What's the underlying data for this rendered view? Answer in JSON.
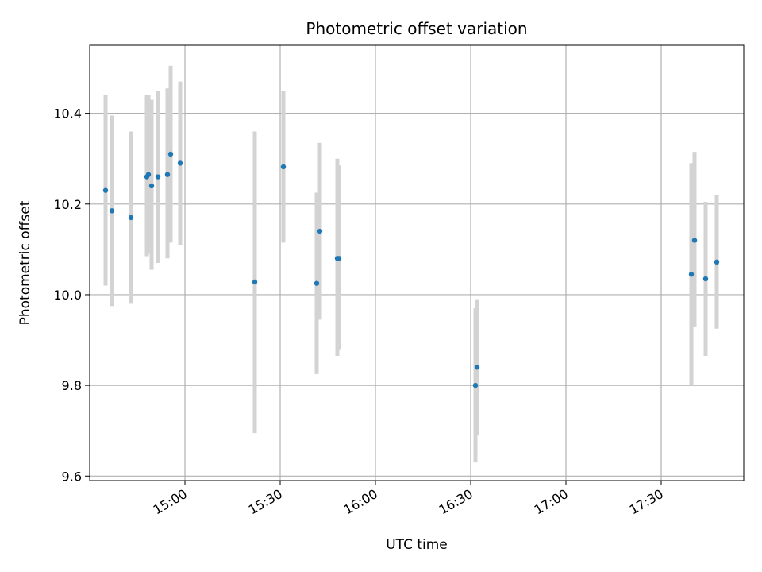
{
  "chart_data": {
    "type": "scatter",
    "title": "Photometric offset variation",
    "xlabel": "UTC time",
    "ylabel": "Photometric offset",
    "x_unit": "UTC time (HH:MM)",
    "xlim": [
      "14:30",
      "17:56"
    ],
    "ylim": [
      9.59,
      10.55
    ],
    "xticks": [
      "15:00",
      "15:30",
      "16:00",
      "16:30",
      "17:00",
      "17:30"
    ],
    "yticks": [
      9.6,
      9.8,
      10.0,
      10.2,
      10.4
    ],
    "ytick_labels": [
      "9.6",
      "9.8",
      "10.0",
      "10.2",
      "10.4"
    ],
    "grid": true,
    "point_color": "#1f77b4",
    "errorbar_color": "#d3d3d3",
    "points": [
      {
        "x": "14:35",
        "y": 10.23,
        "err_low": 10.02,
        "err_high": 10.44
      },
      {
        "x": "14:37",
        "y": 10.185,
        "err_low": 9.975,
        "err_high": 10.395
      },
      {
        "x": "14:43",
        "y": 10.17,
        "err_low": 9.98,
        "err_high": 10.36
      },
      {
        "x": "14:48",
        "y": 10.26,
        "err_low": 10.085,
        "err_high": 10.44
      },
      {
        "x": "14:48.5",
        "y": 10.265,
        "err_low": 10.09,
        "err_high": 10.44
      },
      {
        "x": "14:49.5",
        "y": 10.24,
        "err_low": 10.055,
        "err_high": 10.43
      },
      {
        "x": "14:51.5",
        "y": 10.26,
        "err_low": 10.07,
        "err_high": 10.45
      },
      {
        "x": "14:54.5",
        "y": 10.265,
        "err_low": 10.08,
        "err_high": 10.455
      },
      {
        "x": "14:55.5",
        "y": 10.31,
        "err_low": 10.115,
        "err_high": 10.505
      },
      {
        "x": "14:58.5",
        "y": 10.29,
        "err_low": 10.11,
        "err_high": 10.47
      },
      {
        "x": "15:22",
        "y": 10.028,
        "err_low": 9.695,
        "err_high": 10.36
      },
      {
        "x": "15:31",
        "y": 10.282,
        "err_low": 10.115,
        "err_high": 10.45
      },
      {
        "x": "15:41.5",
        "y": 10.025,
        "err_low": 9.825,
        "err_high": 10.225
      },
      {
        "x": "15:42.5",
        "y": 10.14,
        "err_low": 9.945,
        "err_high": 10.335
      },
      {
        "x": "15:48",
        "y": 10.08,
        "err_low": 9.865,
        "err_high": 10.3
      },
      {
        "x": "15:48.5",
        "y": 10.08,
        "err_low": 9.88,
        "err_high": 10.285
      },
      {
        "x": "16:31.5",
        "y": 9.8,
        "err_low": 9.63,
        "err_high": 9.97
      },
      {
        "x": "16:32",
        "y": 9.84,
        "err_low": 9.69,
        "err_high": 9.99
      },
      {
        "x": "17:39.5",
        "y": 10.045,
        "err_low": 9.8,
        "err_high": 10.29
      },
      {
        "x": "17:40.5",
        "y": 10.12,
        "err_low": 9.93,
        "err_high": 10.315
      },
      {
        "x": "17:44",
        "y": 10.035,
        "err_low": 9.865,
        "err_high": 10.205
      },
      {
        "x": "17:47.5",
        "y": 10.072,
        "err_low": 9.925,
        "err_high": 10.22
      }
    ]
  }
}
